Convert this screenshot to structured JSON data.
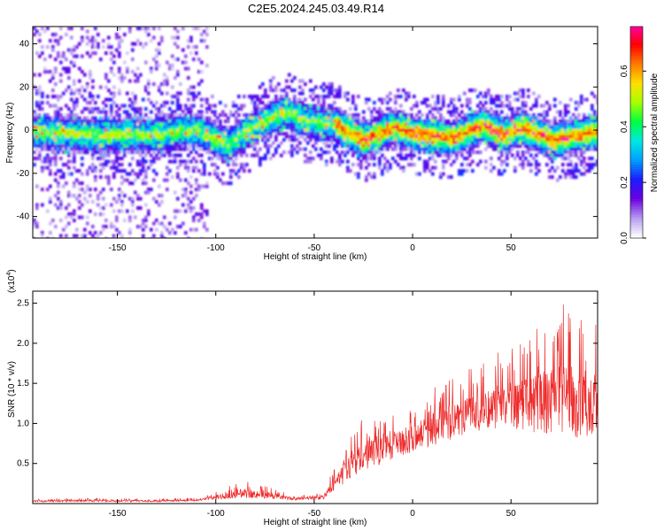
{
  "figure": {
    "title": "C2E5.2024.245.03.49.R14"
  },
  "chart_data": [
    {
      "type": "heatmap",
      "xlabel": "Height of straight line (km)",
      "ylabel": "Frequency (Hz)",
      "xlim": [
        -193,
        94
      ],
      "ylim": [
        -50,
        48
      ],
      "xticks": [
        -150,
        -100,
        -50,
        0,
        50
      ],
      "yticks": [
        -40,
        -20,
        0,
        20,
        40
      ],
      "colorbar": {
        "label": "Normalized spectral amplitude",
        "range": [
          0.0,
          0.76
        ],
        "ticks": [
          "0.0",
          "0.2",
          "0.4",
          "0.6"
        ],
        "colormap": [
          "#ffffff",
          "#b59af0",
          "#6a00e0",
          "#1c1cff",
          "#00a0ff",
          "#00e8e0",
          "#00ff40",
          "#a8ff00",
          "#ffe000",
          "#ff7a00",
          "#ff0000",
          "#ff00aa"
        ]
      },
      "band_center": [
        {
          "x": -190,
          "y": 0
        },
        {
          "x": -160,
          "y": -2
        },
        {
          "x": -130,
          "y": -1
        },
        {
          "x": -110,
          "y": 1
        },
        {
          "x": -95,
          "y": -6
        },
        {
          "x": -80,
          "y": 3
        },
        {
          "x": -65,
          "y": 9
        },
        {
          "x": -55,
          "y": 5
        },
        {
          "x": -40,
          "y": 3
        },
        {
          "x": -25,
          "y": -4
        },
        {
          "x": -10,
          "y": 2
        },
        {
          "x": 0,
          "y": -1
        },
        {
          "x": 20,
          "y": -3
        },
        {
          "x": 35,
          "y": 3
        },
        {
          "x": 45,
          "y": -2
        },
        {
          "x": 55,
          "y": 2
        },
        {
          "x": 70,
          "y": -4
        },
        {
          "x": 94,
          "y": 0
        }
      ],
      "band_halfwidth": 9
    },
    {
      "type": "line",
      "xlabel": "Height of straight line (km)",
      "ylabel": "SNR (10 * v/v)",
      "yscale_label": "(x10",
      "yscale_exp": "4",
      "yscale_close": ")",
      "xlim": [
        -193,
        94
      ],
      "ylim": [
        0,
        2.65
      ],
      "xticks": [
        -150,
        -100,
        -50,
        0,
        50
      ],
      "yticks": [
        "0.5",
        "1.0",
        "1.5",
        "2.0",
        "2.5"
      ],
      "color": "#ee2b2b",
      "series": [
        {
          "values": [
            {
              "x": -193,
              "base": 0.02,
              "peak": 0.06
            },
            {
              "x": -160,
              "base": 0.02,
              "peak": 0.07
            },
            {
              "x": -130,
              "base": 0.02,
              "peak": 0.06
            },
            {
              "x": -110,
              "base": 0.03,
              "peak": 0.07
            },
            {
              "x": -100,
              "base": 0.05,
              "peak": 0.15
            },
            {
              "x": -85,
              "base": 0.07,
              "peak": 0.3
            },
            {
              "x": -75,
              "base": 0.06,
              "peak": 0.22
            },
            {
              "x": -60,
              "base": 0.04,
              "peak": 0.1
            },
            {
              "x": -45,
              "base": 0.05,
              "peak": 0.15
            },
            {
              "x": -40,
              "base": 0.15,
              "peak": 0.45
            },
            {
              "x": -30,
              "base": 0.35,
              "peak": 1.0
            },
            {
              "x": -15,
              "base": 0.5,
              "peak": 1.2
            },
            {
              "x": 0,
              "base": 0.65,
              "peak": 1.25
            },
            {
              "x": 15,
              "base": 0.75,
              "peak": 1.55
            },
            {
              "x": 30,
              "base": 0.9,
              "peak": 1.7
            },
            {
              "x": 45,
              "base": 0.95,
              "peak": 1.95
            },
            {
              "x": 60,
              "base": 0.9,
              "peak": 2.1
            },
            {
              "x": 75,
              "base": 0.85,
              "peak": 2.5
            },
            {
              "x": 94,
              "base": 0.8,
              "peak": 2.3
            }
          ]
        }
      ]
    }
  ]
}
